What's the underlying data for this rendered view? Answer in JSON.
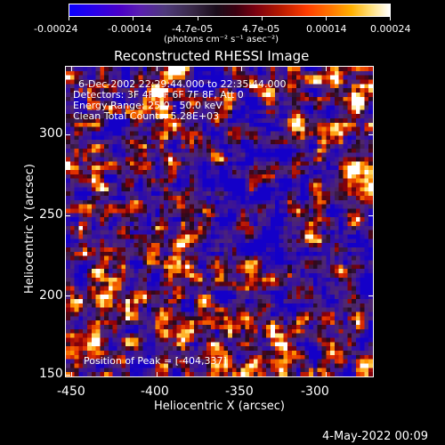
{
  "colorbar": {
    "tick_labels": [
      "-0.00024",
      "-0.00014",
      "-4.7e-05",
      "4.7e-05",
      "0.00014",
      "0.00024"
    ],
    "unit_label": "(photons cm⁻² s⁻¹ asec⁻²)"
  },
  "title": "Reconstructed RHESSI Image",
  "info": {
    "time_range": "6-Dec-2002 22:29:44.000 to 22:35:44.000",
    "detectors": "Detectors: 3F 4F 5F 6F 7F 8F, Att 0",
    "energy": "Energy Range: 25.0 - 50.0 keV",
    "method": "Clean     Total Counts: 5.28E+03",
    "peak": "Position of Peak = [-404,337]"
  },
  "axes": {
    "x_label": "Heliocentric X (arcsec)",
    "y_label": "Heliocentric Y (arcsec)",
    "x_ticks": [
      "-450",
      "-400",
      "-350",
      "-300"
    ],
    "y_ticks": [
      "150",
      "200",
      "250",
      "300"
    ]
  },
  "footer_date": "4-May-2022 00:09",
  "colors": {
    "background": "#000000",
    "text": "#ffffff"
  }
}
